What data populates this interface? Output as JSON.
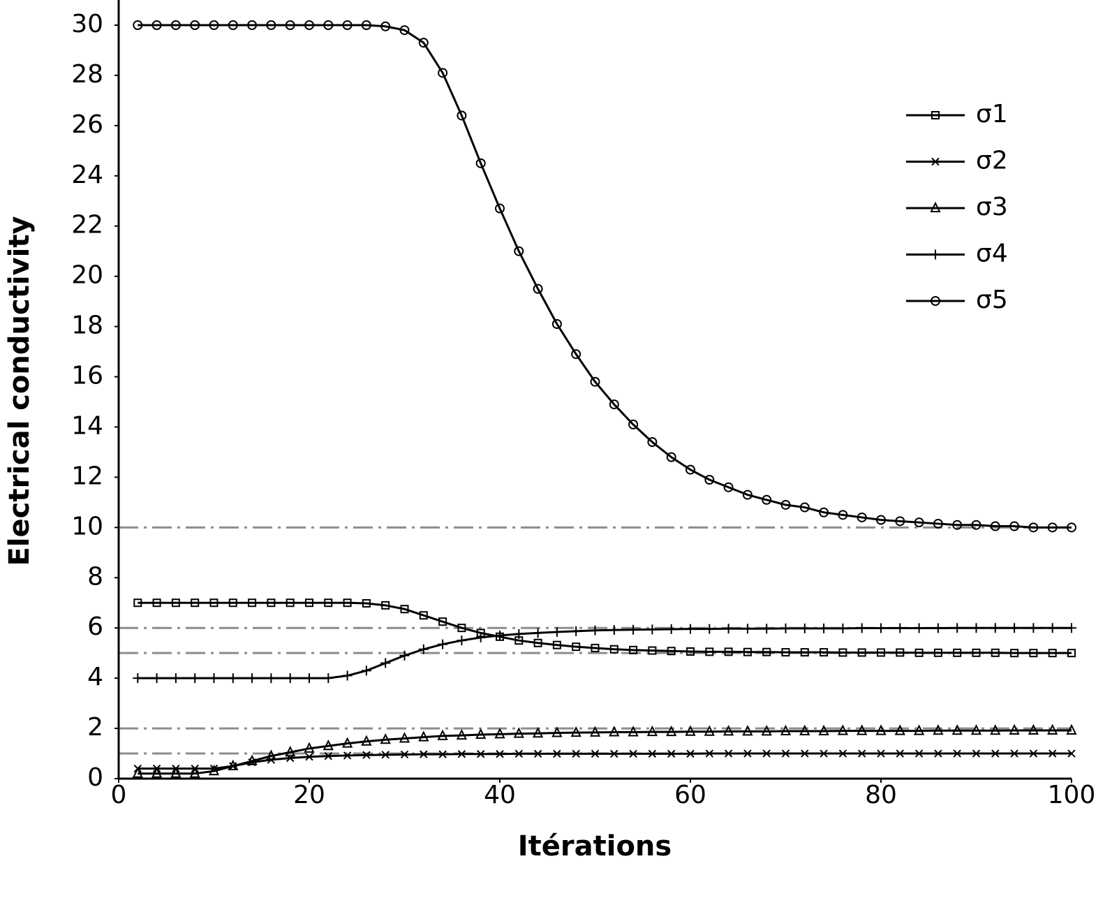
{
  "chart_data": {
    "type": "line",
    "x_label": "Itérations",
    "y_label": "Electrical conductivity",
    "xlim": [
      0,
      100
    ],
    "xticks": [
      0,
      20,
      40,
      60,
      80,
      100
    ],
    "ylim": [
      0,
      30
    ],
    "yticks": [
      0,
      2,
      4,
      6,
      8,
      10,
      12,
      14,
      16,
      18,
      20,
      22,
      24,
      26,
      28,
      30
    ],
    "grid": false,
    "legend": "upper right",
    "reference_lines": [
      10,
      6,
      5,
      2,
      1
    ],
    "reference_color": "#8c8c8c",
    "x": [
      2,
      4,
      6,
      8,
      10,
      12,
      14,
      16,
      18,
      20,
      22,
      24,
      26,
      28,
      30,
      32,
      34,
      36,
      38,
      40,
      42,
      44,
      46,
      48,
      50,
      52,
      54,
      56,
      58,
      60,
      62,
      64,
      66,
      68,
      70,
      72,
      74,
      76,
      78,
      80,
      82,
      84,
      86,
      88,
      90,
      92,
      94,
      96,
      98,
      100
    ],
    "series": [
      {
        "name": "σ1",
        "color": "#000000",
        "marker": "square",
        "values": [
          7,
          7,
          7,
          7,
          7,
          7,
          7,
          7,
          7,
          7,
          7,
          7,
          6.98,
          6.9,
          6.75,
          6.5,
          6.25,
          6,
          5.8,
          5.65,
          5.5,
          5.4,
          5.32,
          5.25,
          5.2,
          5.15,
          5.12,
          5.1,
          5.08,
          5.06,
          5.05,
          5.05,
          5.04,
          5.04,
          5.03,
          5.03,
          5.03,
          5.02,
          5.02,
          5.02,
          5.02,
          5.01,
          5.01,
          5.01,
          5.01,
          5.01,
          5,
          5,
          5,
          5
        ]
      },
      {
        "name": "σ2",
        "color": "#000000",
        "marker": "cross",
        "values": [
          0.4,
          0.4,
          0.4,
          0.4,
          0.4,
          0.5,
          0.65,
          0.75,
          0.82,
          0.87,
          0.9,
          0.92,
          0.94,
          0.95,
          0.96,
          0.97,
          0.97,
          0.98,
          0.98,
          0.98,
          0.99,
          0.99,
          0.99,
          0.99,
          0.99,
          0.99,
          0.99,
          0.99,
          0.99,
          0.99,
          1,
          1,
          1,
          1,
          1,
          1,
          1,
          1,
          1,
          1,
          1,
          1,
          1,
          1,
          1,
          1,
          1,
          1,
          1,
          1
        ]
      },
      {
        "name": "σ3",
        "color": "#000000",
        "marker": "triangle",
        "values": [
          0.2,
          0.2,
          0.2,
          0.2,
          0.3,
          0.5,
          0.7,
          0.9,
          1.05,
          1.2,
          1.3,
          1.4,
          1.48,
          1.55,
          1.6,
          1.65,
          1.7,
          1.72,
          1.75,
          1.77,
          1.79,
          1.8,
          1.82,
          1.83,
          1.84,
          1.85,
          1.85,
          1.86,
          1.86,
          1.87,
          1.87,
          1.88,
          1.88,
          1.88,
          1.89,
          1.89,
          1.89,
          1.9,
          1.9,
          1.9,
          1.9,
          1.9,
          1.91,
          1.91,
          1.91,
          1.91,
          1.92,
          1.92,
          1.92,
          1.92
        ]
      },
      {
        "name": "σ4",
        "color": "#000000",
        "marker": "plus",
        "values": [
          4,
          4,
          4,
          4,
          4,
          4,
          4,
          4,
          4,
          4,
          4,
          4.1,
          4.3,
          4.6,
          4.9,
          5.15,
          5.35,
          5.5,
          5.62,
          5.7,
          5.76,
          5.8,
          5.84,
          5.87,
          5.9,
          5.92,
          5.93,
          5.94,
          5.95,
          5.96,
          5.96,
          5.97,
          5.97,
          5.97,
          5.98,
          5.98,
          5.98,
          5.98,
          5.99,
          5.99,
          5.99,
          5.99,
          5.99,
          6,
          6,
          6,
          6,
          6,
          6,
          6
        ]
      },
      {
        "name": "σ5",
        "color": "#000000",
        "marker": "circle",
        "values": [
          30,
          30,
          30,
          30,
          30,
          30,
          30,
          30,
          30,
          30,
          30,
          30,
          30,
          29.95,
          29.8,
          29.3,
          28.1,
          26.4,
          24.5,
          22.7,
          21,
          19.5,
          18.1,
          16.9,
          15.8,
          14.9,
          14.1,
          13.4,
          12.8,
          12.3,
          11.9,
          11.6,
          11.3,
          11.1,
          10.9,
          10.8,
          10.6,
          10.5,
          10.4,
          10.3,
          10.25,
          10.2,
          10.15,
          10.1,
          10.1,
          10.05,
          10.05,
          10,
          10,
          10
        ]
      }
    ]
  }
}
